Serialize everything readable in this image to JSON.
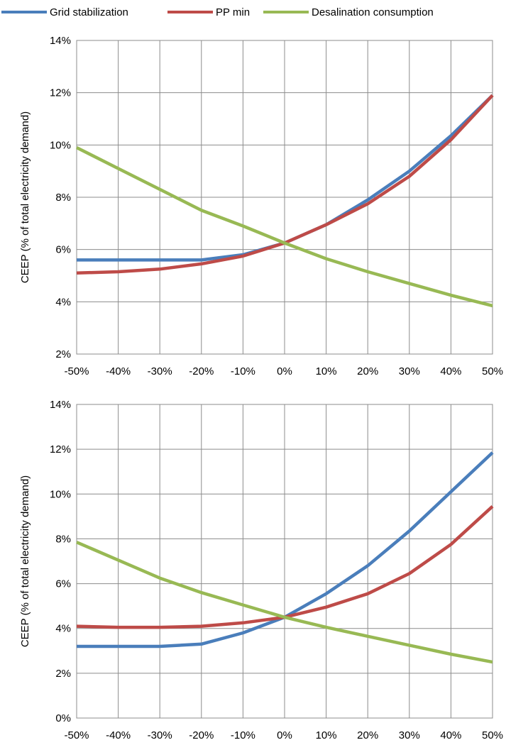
{
  "legend": {
    "items": [
      {
        "label": "Grid stabilization",
        "color": "#4a7ebb"
      },
      {
        "label": "PP min",
        "color": "#be4b48"
      },
      {
        "label": "Desalination consumption",
        "color": "#98b954"
      }
    ]
  },
  "chart_data": [
    {
      "type": "line",
      "title": "",
      "xlabel": "",
      "ylabel": "CEEP (% of total electricity demand)",
      "x": [
        "-50%",
        "-40%",
        "-30%",
        "-20%",
        "-10%",
        "0%",
        "10%",
        "20%",
        "30%",
        "40%",
        "50%"
      ],
      "ylim": [
        2,
        14
      ],
      "yticks": [
        "2%",
        "4%",
        "6%",
        "8%",
        "10%",
        "12%",
        "14%"
      ],
      "grid": true,
      "legend_position": "top",
      "series": [
        {
          "name": "Grid stabilization",
          "color": "#4a7ebb",
          "values": [
            5.6,
            5.6,
            5.6,
            5.6,
            5.8,
            6.25,
            6.95,
            7.9,
            9.0,
            10.35,
            11.9
          ]
        },
        {
          "name": "PP min",
          "color": "#be4b48",
          "values": [
            5.1,
            5.15,
            5.25,
            5.45,
            5.75,
            6.25,
            6.95,
            7.75,
            8.8,
            10.2,
            11.9
          ]
        },
        {
          "name": "Desalination consumption",
          "color": "#98b954",
          "values": [
            9.9,
            9.1,
            8.3,
            7.5,
            6.9,
            6.25,
            5.65,
            5.15,
            4.7,
            4.25,
            3.85
          ]
        }
      ]
    },
    {
      "type": "line",
      "title": "",
      "xlabel": "",
      "ylabel": "CEEP (% of total electricity demand)",
      "x": [
        "-50%",
        "-40%",
        "-30%",
        "-20%",
        "-10%",
        "0%",
        "10%",
        "20%",
        "30%",
        "40%",
        "50%"
      ],
      "ylim": [
        0,
        14
      ],
      "yticks": [
        "0%",
        "2%",
        "4%",
        "6%",
        "8%",
        "10%",
        "12%",
        "14%"
      ],
      "grid": true,
      "legend_position": "top",
      "series": [
        {
          "name": "Grid stabilization",
          "color": "#4a7ebb",
          "values": [
            3.2,
            3.2,
            3.2,
            3.3,
            3.8,
            4.5,
            5.55,
            6.8,
            8.35,
            10.1,
            11.85
          ]
        },
        {
          "name": "PP min",
          "color": "#be4b48",
          "values": [
            4.1,
            4.05,
            4.05,
            4.1,
            4.25,
            4.5,
            4.95,
            5.55,
            6.45,
            7.75,
            9.45
          ]
        },
        {
          "name": "Desalination consumption",
          "color": "#98b954",
          "values": [
            7.85,
            7.05,
            6.25,
            5.6,
            5.05,
            4.5,
            4.05,
            3.65,
            3.25,
            2.85,
            2.5
          ]
        }
      ]
    }
  ]
}
